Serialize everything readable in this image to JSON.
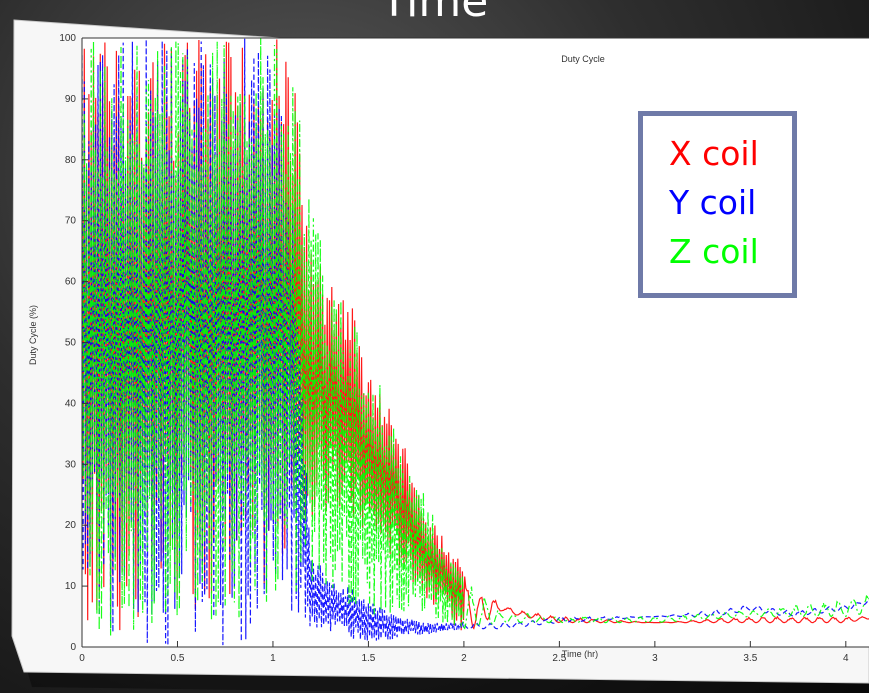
{
  "slide": {
    "title": "Time"
  },
  "chart_data": {
    "type": "line",
    "title": "Duty Cycle",
    "xlabel": "Time (hr)",
    "ylabel": "Duty Cycle (%)",
    "xlim": [
      0,
      4.2
    ],
    "ylim": [
      0,
      100
    ],
    "xticks": [
      0,
      0.5,
      1,
      1.5,
      2,
      2.5,
      3,
      3.5,
      4
    ],
    "xtick_labels": [
      "0",
      "0.5",
      "1",
      "1.5",
      "2",
      "2.5",
      "3",
      "3.5",
      "4"
    ],
    "yticks": [
      0,
      10,
      20,
      30,
      40,
      50,
      60,
      70,
      80,
      90,
      100
    ],
    "ytick_labels": [
      "0",
      "10",
      "20",
      "30",
      "40",
      "50",
      "60",
      "70",
      "80",
      "90",
      "100"
    ],
    "grid": false,
    "legend_position": "top-right",
    "legend": [
      {
        "label_letter": "X",
        "label_word": " coil",
        "color": "#ff0000"
      },
      {
        "label_letter": "Y",
        "label_word": " coil",
        "color": "#0000ff"
      },
      {
        "label_letter": "Z",
        "label_word": " coil",
        "color": "#00ff00"
      }
    ],
    "series": [
      {
        "color": "#ff0000",
        "style": "solid",
        "x": [
          0.0,
          0.25,
          0.5,
          0.75,
          1.0,
          1.1,
          1.2,
          1.3,
          1.4,
          1.5,
          1.6,
          1.7,
          1.8,
          1.9,
          2.0,
          2.1,
          2.2,
          2.3,
          2.5,
          3.0,
          3.5,
          4.0,
          4.2
        ],
        "low": [
          0,
          2,
          5,
          8,
          10,
          15,
          20,
          22,
          20,
          18,
          15,
          12,
          8,
          5,
          2,
          4,
          6,
          5,
          4,
          4,
          4,
          4,
          5
        ],
        "high": [
          100,
          100,
          100,
          100,
          100,
          99,
          65,
          60,
          58,
          45,
          40,
          32,
          22,
          18,
          14,
          10,
          7,
          6,
          5,
          4,
          5,
          5,
          5
        ]
      },
      {
        "color": "#0000ff",
        "style": "dashed",
        "x": [
          0.0,
          0.25,
          0.5,
          0.75,
          1.0,
          1.1,
          1.2,
          1.3,
          1.4,
          1.5,
          1.6,
          1.7,
          1.8,
          2.0,
          2.2,
          2.5,
          3.0,
          3.3,
          3.5,
          3.7,
          4.0,
          4.2
        ],
        "low": [
          0,
          0,
          0,
          0,
          0,
          2,
          3,
          2,
          1,
          1,
          1,
          2,
          2,
          3,
          3,
          4,
          5,
          5,
          6,
          5,
          6,
          8
        ],
        "high": [
          100,
          100,
          100,
          100,
          100,
          75,
          15,
          12,
          10,
          8,
          6,
          5,
          4,
          4,
          4,
          5,
          5,
          6,
          7,
          6,
          7,
          9
        ]
      },
      {
        "color": "#00ff00",
        "style": "dashdot",
        "x": [
          0.0,
          0.25,
          0.5,
          0.75,
          1.0,
          1.1,
          1.2,
          1.3,
          1.4,
          1.5,
          1.6,
          1.7,
          1.8,
          1.9,
          2.0,
          2.2,
          2.5,
          3.0,
          3.5,
          4.0,
          4.2
        ],
        "low": [
          0,
          2,
          3,
          4,
          5,
          8,
          10,
          8,
          6,
          5,
          5,
          4,
          4,
          3,
          3,
          4,
          4,
          4,
          5,
          5,
          6
        ],
        "high": [
          100,
          100,
          100,
          100,
          100,
          95,
          75,
          60,
          55,
          50,
          40,
          30,
          25,
          16,
          12,
          6,
          5,
          5,
          6,
          8,
          10
        ]
      }
    ]
  }
}
